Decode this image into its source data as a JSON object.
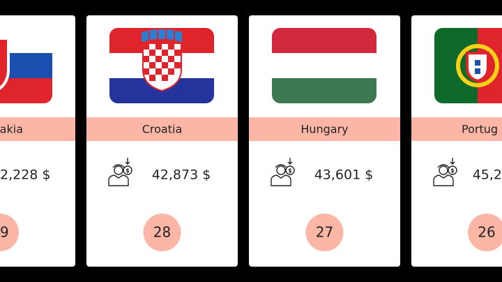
{
  "cards": [
    {
      "country": "akia",
      "income": "2,228 $",
      "rank": "9"
    },
    {
      "country": "Croatia",
      "income": "42,873 $",
      "rank": "28"
    },
    {
      "country": "Hungary",
      "income": "43,601 $",
      "rank": "27"
    },
    {
      "country": "Portug",
      "income": "45,2",
      "rank": "26"
    }
  ]
}
